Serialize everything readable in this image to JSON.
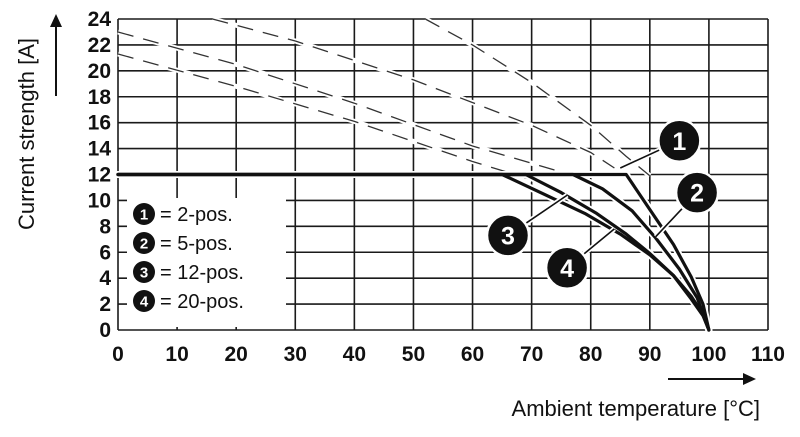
{
  "chart_data": {
    "type": "line",
    "xlabel": "Ambient temperature [°C]",
    "ylabel": "Current strength [A]",
    "xlim": [
      0,
      110
    ],
    "ylim": [
      0,
      24
    ],
    "xticks": [
      "0",
      "10",
      "20",
      "30",
      "40",
      "50",
      "60",
      "70",
      "80",
      "90",
      "100",
      "110"
    ],
    "yticks": [
      "0",
      "2",
      "4",
      "6",
      "8",
      "10",
      "12",
      "14",
      "16",
      "18",
      "20",
      "22",
      "24"
    ],
    "grid": true,
    "legend_position": "bottom-left",
    "legend": [
      {
        "marker": "1",
        "label": "= 2-pos."
      },
      {
        "marker": "2",
        "label": "= 5-pos."
      },
      {
        "marker": "3",
        "label": "= 12-pos."
      },
      {
        "marker": "4",
        "label": "= 20-pos."
      }
    ],
    "derating_series": [
      {
        "marker": "1",
        "points": [
          [
            0,
            12
          ],
          [
            86,
            12
          ],
          [
            90,
            9.3
          ],
          [
            94,
            6.6
          ],
          [
            97,
            4.1
          ],
          [
            99,
            2.0
          ],
          [
            100,
            0
          ]
        ]
      },
      {
        "marker": "2",
        "points": [
          [
            0,
            12
          ],
          [
            77,
            12
          ],
          [
            82,
            10.9
          ],
          [
            87,
            9.2
          ],
          [
            91,
            7.1
          ],
          [
            95,
            4.7
          ],
          [
            98,
            2.5
          ],
          [
            100,
            0
          ]
        ]
      },
      {
        "marker": "3",
        "points": [
          [
            0,
            12
          ],
          [
            69,
            12
          ],
          [
            75,
            10.6
          ],
          [
            81,
            9.0
          ],
          [
            86,
            7.4
          ],
          [
            90,
            5.9
          ],
          [
            94,
            4.2
          ],
          [
            97,
            2.4
          ],
          [
            99,
            1.1
          ],
          [
            100,
            0
          ]
        ]
      },
      {
        "marker": "4",
        "points": [
          [
            0,
            12
          ],
          [
            65,
            12
          ],
          [
            72,
            10.5
          ],
          [
            79,
            9.0
          ],
          [
            85,
            7.4
          ],
          [
            90,
            5.8
          ],
          [
            94,
            4.2
          ],
          [
            97,
            2.6
          ],
          [
            99,
            1.2
          ],
          [
            100,
            0
          ]
        ]
      }
    ],
    "reference_series": [
      {
        "marker": "1",
        "points": [
          [
            52,
            24
          ],
          [
            60,
            22.0
          ],
          [
            70,
            19.1
          ],
          [
            80,
            15.8
          ],
          [
            86,
            13.4
          ],
          [
            90,
            11.9
          ]
        ]
      },
      {
        "marker": "2",
        "points": [
          [
            16,
            24
          ],
          [
            30,
            22.3
          ],
          [
            50,
            19.3
          ],
          [
            70,
            15.8
          ],
          [
            80,
            13.7
          ],
          [
            84,
            12.5
          ]
        ]
      },
      {
        "marker": "3",
        "points": [
          [
            0,
            23.0
          ],
          [
            20,
            20.5
          ],
          [
            40,
            17.5
          ],
          [
            60,
            14.2
          ],
          [
            75,
            12.2
          ]
        ]
      },
      {
        "marker": "4",
        "points": [
          [
            0,
            21.3
          ],
          [
            20,
            18.8
          ],
          [
            40,
            16.1
          ],
          [
            60,
            13.0
          ],
          [
            70,
            11.6
          ]
        ]
      }
    ],
    "callouts": [
      {
        "marker": "1",
        "anchor": [
          85,
          12.5
        ],
        "label_at": [
          95,
          14.6
        ]
      },
      {
        "marker": "2",
        "anchor": [
          91,
          7.2
        ],
        "label_at": [
          98,
          10.6
        ]
      },
      {
        "marker": "3",
        "anchor": [
          76,
          10.4
        ],
        "label_at": [
          66,
          7.3
        ]
      },
      {
        "marker": "4",
        "anchor": [
          84,
          7.8
        ],
        "label_at": [
          76,
          4.8
        ]
      }
    ],
    "colors": {
      "grid": "#1a1a1a",
      "line": "#111111",
      "reference_dash": "#333333",
      "marker_fill": "#111111",
      "marker_text": "#ffffff"
    }
  }
}
